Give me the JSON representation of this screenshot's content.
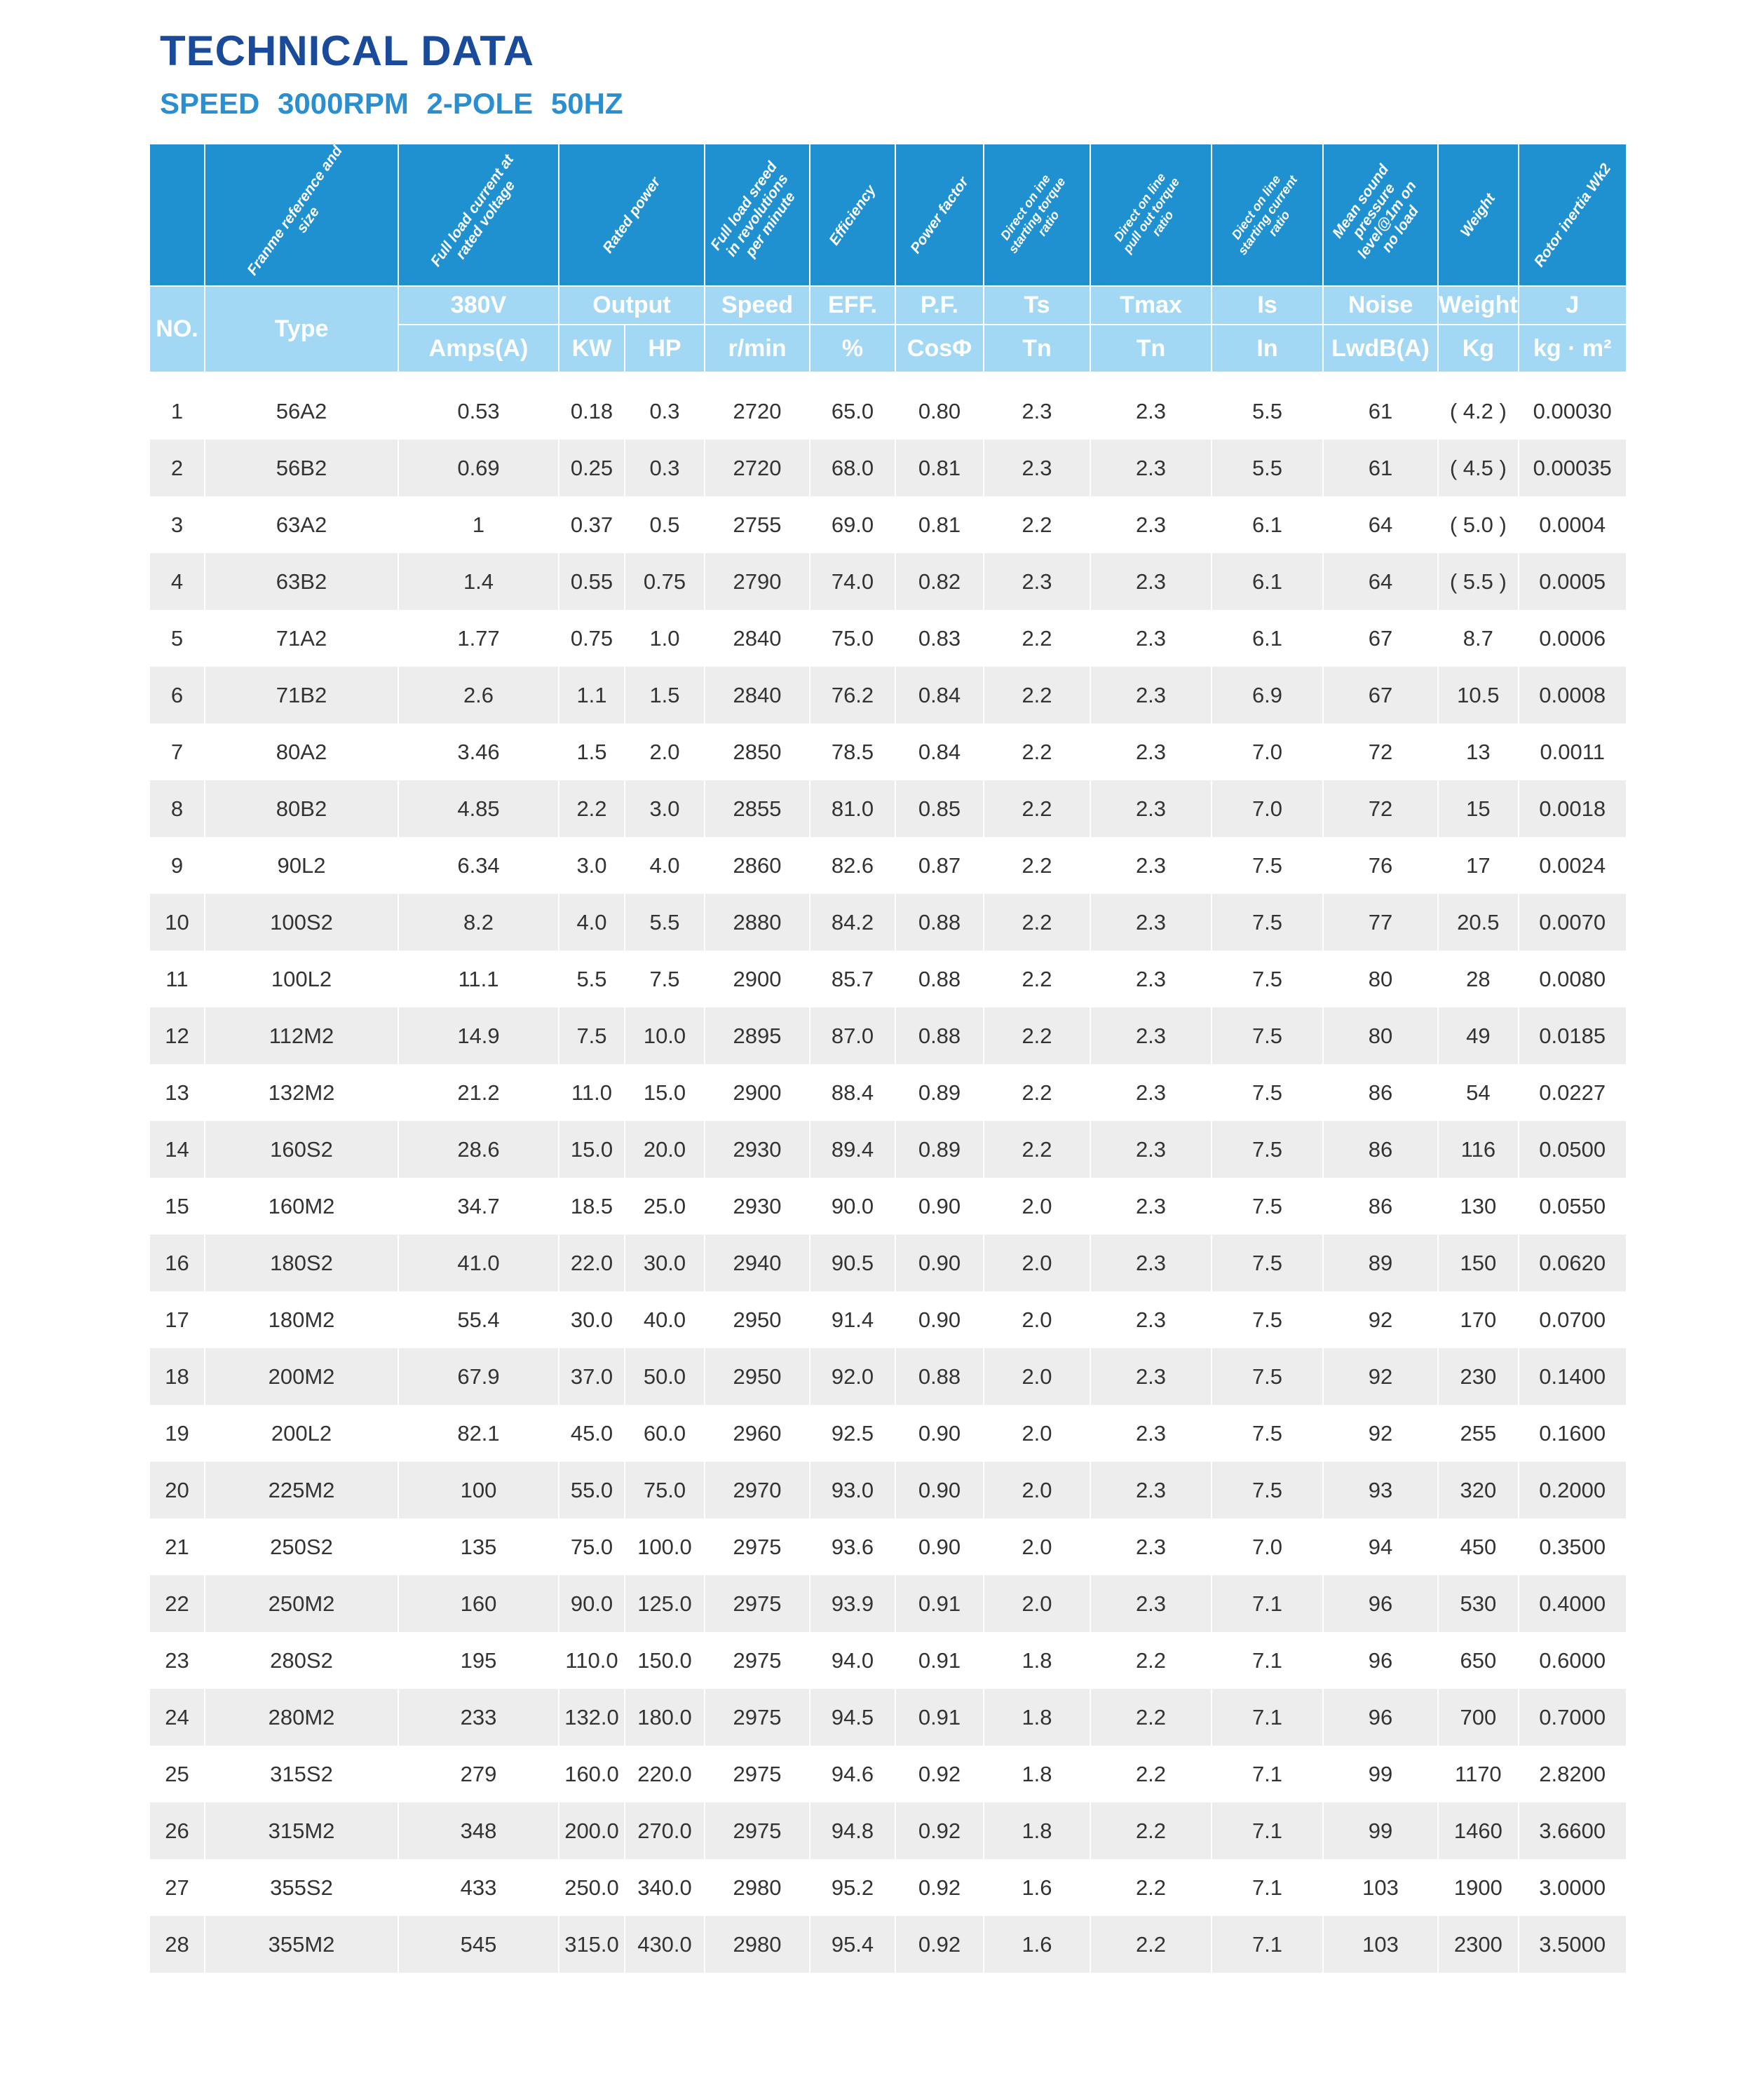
{
  "title": "TECHNICAL DATA",
  "subtitle": "SPEED  3000RPM  2-POLE  50HZ",
  "colors": {
    "title": "#1a4a9a",
    "subtitle": "#2a8fd0",
    "header_dark": "#1f91d1",
    "header_light": "#a3d8f4",
    "row_alt": "#ededed"
  },
  "header": {
    "descriptions": [
      "Franme reference and size",
      "Full load current at rated voltage",
      "Rated power",
      "Full load sreed in revolutions per minute",
      "Efficiency",
      "Power factor",
      "Direct on ine starting torque ratio",
      "Direct on line pull out torque ratio",
      "Diect on line starting current ratio",
      "Mean sound pressure level@1m on no load",
      "Weight",
      "Rotor inertia Wk2"
    ],
    "no": "NO.",
    "type": "Type",
    "row2": [
      "380V",
      "Output",
      "Speed",
      "EFF.",
      "P.F.",
      "Ts",
      "Tmax",
      "Is",
      "Noise",
      "Weight",
      "J"
    ],
    "row3": [
      "Amps(A)",
      "KW",
      "HP",
      "r/min",
      "%",
      "CosΦ",
      "Tn",
      "Tn",
      "In",
      "LwdB(A)",
      "Kg",
      "kg · m²"
    ]
  },
  "rows": [
    [
      "1",
      "56A2",
      "0.53",
      "0.18",
      "0.3",
      "2720",
      "65.0",
      "0.80",
      "2.3",
      "2.3",
      "5.5",
      "61",
      "( 4.2 )",
      "0.00030"
    ],
    [
      "2",
      "56B2",
      "0.69",
      "0.25",
      "0.3",
      "2720",
      "68.0",
      "0.81",
      "2.3",
      "2.3",
      "5.5",
      "61",
      "( 4.5 )",
      "0.00035"
    ],
    [
      "3",
      "63A2",
      "1",
      "0.37",
      "0.5",
      "2755",
      "69.0",
      "0.81",
      "2.2",
      "2.3",
      "6.1",
      "64",
      "( 5.0 )",
      "0.0004"
    ],
    [
      "4",
      "63B2",
      "1.4",
      "0.55",
      "0.75",
      "2790",
      "74.0",
      "0.82",
      "2.3",
      "2.3",
      "6.1",
      "64",
      "( 5.5 )",
      "0.0005"
    ],
    [
      "5",
      "71A2",
      "1.77",
      "0.75",
      "1.0",
      "2840",
      "75.0",
      "0.83",
      "2.2",
      "2.3",
      "6.1",
      "67",
      "8.7",
      "0.0006"
    ],
    [
      "6",
      "71B2",
      "2.6",
      "1.1",
      "1.5",
      "2840",
      "76.2",
      "0.84",
      "2.2",
      "2.3",
      "6.9",
      "67",
      "10.5",
      "0.0008"
    ],
    [
      "7",
      "80A2",
      "3.46",
      "1.5",
      "2.0",
      "2850",
      "78.5",
      "0.84",
      "2.2",
      "2.3",
      "7.0",
      "72",
      "13",
      "0.0011"
    ],
    [
      "8",
      "80B2",
      "4.85",
      "2.2",
      "3.0",
      "2855",
      "81.0",
      "0.85",
      "2.2",
      "2.3",
      "7.0",
      "72",
      "15",
      "0.0018"
    ],
    [
      "9",
      "90L2",
      "6.34",
      "3.0",
      "4.0",
      "2860",
      "82.6",
      "0.87",
      "2.2",
      "2.3",
      "7.5",
      "76",
      "17",
      "0.0024"
    ],
    [
      "10",
      "100S2",
      "8.2",
      "4.0",
      "5.5",
      "2880",
      "84.2",
      "0.88",
      "2.2",
      "2.3",
      "7.5",
      "77",
      "20.5",
      "0.0070"
    ],
    [
      "11",
      "100L2",
      "11.1",
      "5.5",
      "7.5",
      "2900",
      "85.7",
      "0.88",
      "2.2",
      "2.3",
      "7.5",
      "80",
      "28",
      "0.0080"
    ],
    [
      "12",
      "112M2",
      "14.9",
      "7.5",
      "10.0",
      "2895",
      "87.0",
      "0.88",
      "2.2",
      "2.3",
      "7.5",
      "80",
      "49",
      "0.0185"
    ],
    [
      "13",
      "132M2",
      "21.2",
      "11.0",
      "15.0",
      "2900",
      "88.4",
      "0.89",
      "2.2",
      "2.3",
      "7.5",
      "86",
      "54",
      "0.0227"
    ],
    [
      "14",
      "160S2",
      "28.6",
      "15.0",
      "20.0",
      "2930",
      "89.4",
      "0.89",
      "2.2",
      "2.3",
      "7.5",
      "86",
      "116",
      "0.0500"
    ],
    [
      "15",
      "160M2",
      "34.7",
      "18.5",
      "25.0",
      "2930",
      "90.0",
      "0.90",
      "2.0",
      "2.3",
      "7.5",
      "86",
      "130",
      "0.0550"
    ],
    [
      "16",
      "180S2",
      "41.0",
      "22.0",
      "30.0",
      "2940",
      "90.5",
      "0.90",
      "2.0",
      "2.3",
      "7.5",
      "89",
      "150",
      "0.0620"
    ],
    [
      "17",
      "180M2",
      "55.4",
      "30.0",
      "40.0",
      "2950",
      "91.4",
      "0.90",
      "2.0",
      "2.3",
      "7.5",
      "92",
      "170",
      "0.0700"
    ],
    [
      "18",
      "200M2",
      "67.9",
      "37.0",
      "50.0",
      "2950",
      "92.0",
      "0.88",
      "2.0",
      "2.3",
      "7.5",
      "92",
      "230",
      "0.1400"
    ],
    [
      "19",
      "200L2",
      "82.1",
      "45.0",
      "60.0",
      "2960",
      "92.5",
      "0.90",
      "2.0",
      "2.3",
      "7.5",
      "92",
      "255",
      "0.1600"
    ],
    [
      "20",
      "225M2",
      "100",
      "55.0",
      "75.0",
      "2970",
      "93.0",
      "0.90",
      "2.0",
      "2.3",
      "7.5",
      "93",
      "320",
      "0.2000"
    ],
    [
      "21",
      "250S2",
      "135",
      "75.0",
      "100.0",
      "2975",
      "93.6",
      "0.90",
      "2.0",
      "2.3",
      "7.0",
      "94",
      "450",
      "0.3500"
    ],
    [
      "22",
      "250M2",
      "160",
      "90.0",
      "125.0",
      "2975",
      "93.9",
      "0.91",
      "2.0",
      "2.3",
      "7.1",
      "96",
      "530",
      "0.4000"
    ],
    [
      "23",
      "280S2",
      "195",
      "110.0",
      "150.0",
      "2975",
      "94.0",
      "0.91",
      "1.8",
      "2.2",
      "7.1",
      "96",
      "650",
      "0.6000"
    ],
    [
      "24",
      "280M2",
      "233",
      "132.0",
      "180.0",
      "2975",
      "94.5",
      "0.91",
      "1.8",
      "2.2",
      "7.1",
      "96",
      "700",
      "0.7000"
    ],
    [
      "25",
      "315S2",
      "279",
      "160.0",
      "220.0",
      "2975",
      "94.6",
      "0.92",
      "1.8",
      "2.2",
      "7.1",
      "99",
      "1170",
      "2.8200"
    ],
    [
      "26",
      "315M2",
      "348",
      "200.0",
      "270.0",
      "2975",
      "94.8",
      "0.92",
      "1.8",
      "2.2",
      "7.1",
      "99",
      "1460",
      "3.6600"
    ],
    [
      "27",
      "355S2",
      "433",
      "250.0",
      "340.0",
      "2980",
      "95.2",
      "0.92",
      "1.6",
      "2.2",
      "7.1",
      "103",
      "1900",
      "3.0000"
    ],
    [
      "28",
      "355M2",
      "545",
      "315.0",
      "430.0",
      "2980",
      "95.4",
      "0.92",
      "1.6",
      "2.2",
      "7.1",
      "103",
      "2300",
      "3.5000"
    ]
  ]
}
